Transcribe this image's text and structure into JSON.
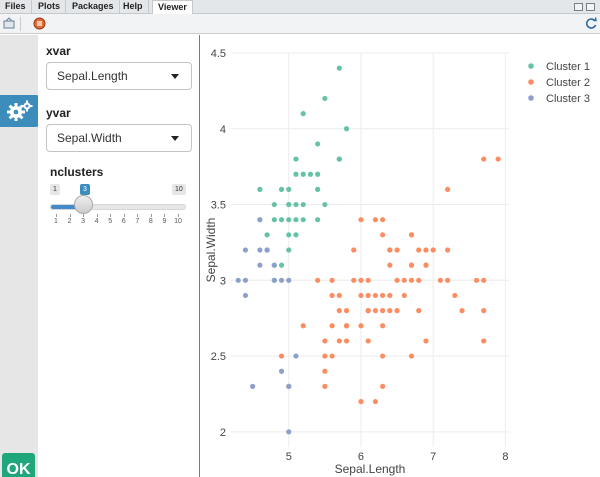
{
  "tabs": [
    {
      "label": "Files",
      "active": false
    },
    {
      "label": "Plots",
      "active": false
    },
    {
      "label": "Packages",
      "active": false
    },
    {
      "label": "Help",
      "active": false
    },
    {
      "label": "Viewer",
      "active": true
    }
  ],
  "sidebar": {
    "xvar_label": "xvar",
    "xvar_value": "Sepal.Length",
    "yvar_label": "yvar",
    "yvar_value": "Sepal.Width",
    "nclusters_label": "nclusters",
    "slider": {
      "min": 1,
      "max": 10,
      "value": 3,
      "min_label": "1",
      "max_label": "10",
      "value_label": "3",
      "ticks": [
        "1",
        "2",
        "3",
        "4",
        "5",
        "6",
        "7",
        "8",
        "9",
        "10"
      ]
    }
  },
  "ok_label": "OK",
  "colors": {
    "cluster1": "#66c2a5",
    "cluster2": "#fc8d62",
    "cluster3": "#8da0cb",
    "accent": "#3c8dbc",
    "ok": "#1fa67a"
  },
  "chart_data": {
    "type": "scatter",
    "xlabel": "Sepal.Length",
    "ylabel": "Sepal.Width",
    "xlim": [
      4.2,
      8.05
    ],
    "ylim": [
      1.9,
      4.5
    ],
    "xticks": [
      "5",
      "6",
      "7",
      "8"
    ],
    "yticks": [
      "2",
      "2.5",
      "3",
      "3.5",
      "4",
      "4.5"
    ],
    "legend_position": "top-right",
    "series": [
      {
        "name": "Cluster 1",
        "color": "#66c2a5",
        "points": [
          [
            5.7,
            4.4
          ],
          [
            5.5,
            4.2
          ],
          [
            5.2,
            4.1
          ],
          [
            5.8,
            4.0
          ],
          [
            5.4,
            3.9
          ],
          [
            5.7,
            3.8
          ],
          [
            5.1,
            3.8
          ],
          [
            5.3,
            3.7
          ],
          [
            5.1,
            3.7
          ],
          [
            5.0,
            3.6
          ],
          [
            4.6,
            3.6
          ],
          [
            5.4,
            3.7
          ],
          [
            5.1,
            3.5
          ],
          [
            5.0,
            3.5
          ],
          [
            5.2,
            3.5
          ],
          [
            5.5,
            3.5
          ],
          [
            4.9,
            3.4
          ],
          [
            4.8,
            3.4
          ],
          [
            5.0,
            3.4
          ],
          [
            5.1,
            3.4
          ],
          [
            5.2,
            3.4
          ],
          [
            5.4,
            3.4
          ],
          [
            4.6,
            3.4
          ],
          [
            5.0,
            3.3
          ],
          [
            5.1,
            3.3
          ],
          [
            4.7,
            3.2
          ],
          [
            5.0,
            3.2
          ],
          [
            4.8,
            3.1
          ],
          [
            4.9,
            3.1
          ],
          [
            4.8,
            3.0
          ],
          [
            4.7,
            3.3
          ],
          [
            4.9,
            3.6
          ],
          [
            5.4,
            3.6
          ],
          [
            5.7,
            3.8
          ],
          [
            5.0,
            3.5
          ],
          [
            4.8,
            3.5
          ],
          [
            5.2,
            3.7
          ]
        ]
      },
      {
        "name": "Cluster 2",
        "color": "#fc8d62",
        "points": [
          [
            7.7,
            3.8
          ],
          [
            7.9,
            3.8
          ],
          [
            7.2,
            3.6
          ],
          [
            6.0,
            3.4
          ],
          [
            6.3,
            3.4
          ],
          [
            6.2,
            3.4
          ],
          [
            6.7,
            3.3
          ],
          [
            6.3,
            3.3
          ],
          [
            6.4,
            3.2
          ],
          [
            6.9,
            3.2
          ],
          [
            6.5,
            3.2
          ],
          [
            7.2,
            3.2
          ],
          [
            6.8,
            3.2
          ],
          [
            6.7,
            3.1
          ],
          [
            6.9,
            3.1
          ],
          [
            6.4,
            3.1
          ],
          [
            6.6,
            3.0
          ],
          [
            6.5,
            3.0
          ],
          [
            7.1,
            3.0
          ],
          [
            6.7,
            3.0
          ],
          [
            7.2,
            3.0
          ],
          [
            7.6,
            3.0
          ],
          [
            6.0,
            3.0
          ],
          [
            6.1,
            3.0
          ],
          [
            5.6,
            3.0
          ],
          [
            5.9,
            3.0
          ],
          [
            6.8,
            3.0
          ],
          [
            7.7,
            3.0
          ],
          [
            6.3,
            2.9
          ],
          [
            6.1,
            2.9
          ],
          [
            6.6,
            2.9
          ],
          [
            6.2,
            2.9
          ],
          [
            6.4,
            2.9
          ],
          [
            7.3,
            2.9
          ],
          [
            6.0,
            2.9
          ],
          [
            5.7,
            2.9
          ],
          [
            6.1,
            2.8
          ],
          [
            6.4,
            2.8
          ],
          [
            7.7,
            2.8
          ],
          [
            6.3,
            2.8
          ],
          [
            6.5,
            2.8
          ],
          [
            7.4,
            2.8
          ],
          [
            6.8,
            2.8
          ],
          [
            6.2,
            2.8
          ],
          [
            5.8,
            2.8
          ],
          [
            5.7,
            2.8
          ],
          [
            6.7,
            2.5
          ],
          [
            6.3,
            2.5
          ],
          [
            5.5,
            2.5
          ],
          [
            5.6,
            2.5
          ],
          [
            6.0,
            2.2
          ],
          [
            6.2,
            2.2
          ],
          [
            5.8,
            2.7
          ],
          [
            6.1,
            2.6
          ],
          [
            5.7,
            2.6
          ],
          [
            6.3,
            2.7
          ],
          [
            7.7,
            2.6
          ],
          [
            6.9,
            2.6
          ],
          [
            5.2,
            2.7
          ],
          [
            5.6,
            2.7
          ],
          [
            5.8,
            2.6
          ],
          [
            6.0,
            2.7
          ],
          [
            5.5,
            2.6
          ],
          [
            4.9,
            2.5
          ],
          [
            5.5,
            2.3
          ],
          [
            6.3,
            2.3
          ],
          [
            6.0,
            2.2
          ],
          [
            5.5,
            2.4
          ],
          [
            5.0,
            2.3
          ],
          [
            5.8,
            2.7
          ],
          [
            6.9,
            3.1
          ],
          [
            6.7,
            3.1
          ],
          [
            7.0,
            3.2
          ],
          [
            6.4,
            3.2
          ],
          [
            5.4,
            3.0
          ],
          [
            5.6,
            2.9
          ],
          [
            6.7,
            3.3
          ],
          [
            5.9,
            3.2
          ],
          [
            6.1,
            2.8
          ]
        ]
      },
      {
        "name": "Cluster 3",
        "color": "#8da0cb",
        "points": [
          [
            4.4,
            3.2
          ],
          [
            4.6,
            3.2
          ],
          [
            4.7,
            3.2
          ],
          [
            4.4,
            3.0
          ],
          [
            4.3,
            3.0
          ],
          [
            4.4,
            2.9
          ],
          [
            4.6,
            3.1
          ],
          [
            4.8,
            3.0
          ],
          [
            4.9,
            3.0
          ],
          [
            4.5,
            2.3
          ],
          [
            5.0,
            3.0
          ],
          [
            4.9,
            2.4
          ],
          [
            5.1,
            2.5
          ],
          [
            5.0,
            2.3
          ],
          [
            5.0,
            2.0
          ],
          [
            4.8,
            3.1
          ],
          [
            4.7,
            3.2
          ],
          [
            4.6,
            3.4
          ]
        ]
      }
    ]
  }
}
